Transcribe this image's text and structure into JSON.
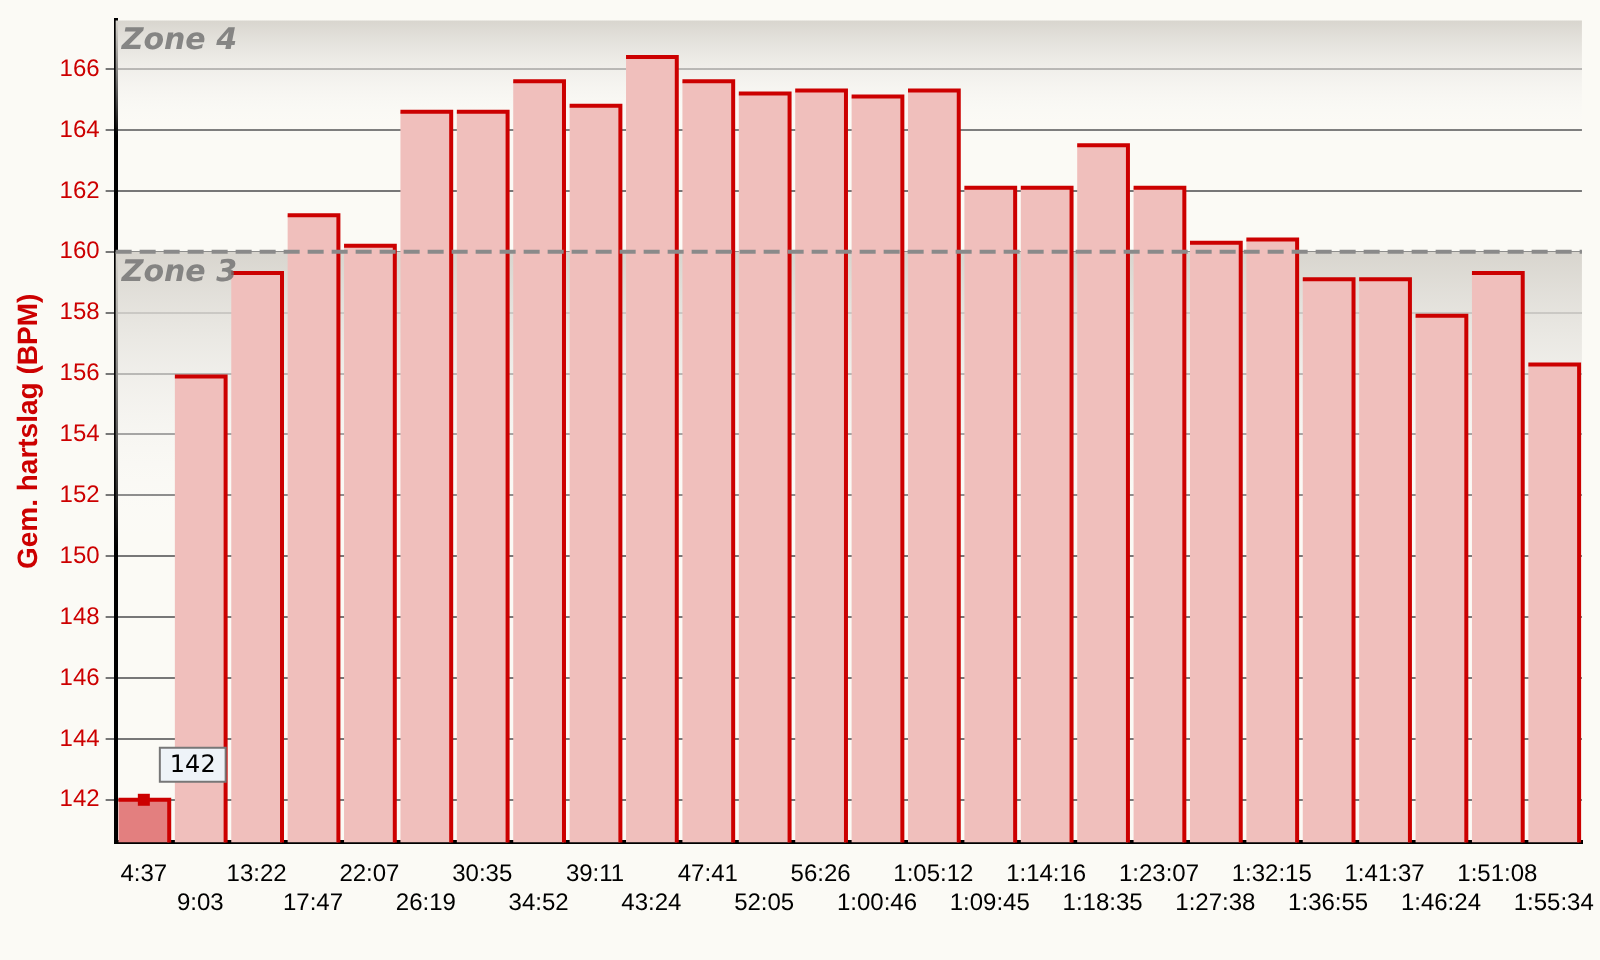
{
  "chart_data": {
    "type": "bar",
    "ylabel": "Gem. hartslag (BPM)",
    "categories": [
      "4:37",
      "9:03",
      "13:22",
      "17:47",
      "22:07",
      "26:19",
      "30:35",
      "34:52",
      "39:11",
      "43:24",
      "47:41",
      "52:05",
      "56:26",
      "1:00:46",
      "1:05:12",
      "1:09:45",
      "1:14:16",
      "1:18:35",
      "1:23:07",
      "1:27:38",
      "1:32:15",
      "1:36:55",
      "1:41:37",
      "1:46:24",
      "1:51:08",
      "1:55:34"
    ],
    "values": [
      142,
      155.9,
      159.3,
      161.2,
      160.2,
      164.6,
      164.6,
      165.6,
      164.8,
      166.4,
      165.6,
      165.2,
      165.3,
      165.1,
      165.3,
      162.1,
      162.1,
      163.5,
      162.1,
      160.3,
      160.4,
      159.1,
      159.1,
      157.9,
      159.3,
      156.3
    ],
    "colors": [
      "#e37f7f",
      "#f0bfbc",
      "#f0bfbc",
      "#f0bfbc",
      "#f0bfbc",
      "#f0bfbc",
      "#f0bfbc",
      "#f0bfbc",
      "#f0bfbc",
      "#f0bfbc",
      "#f0bfbc",
      "#f0bfbc",
      "#f0bfbc",
      "#f0bfbc",
      "#f0bfbc",
      "#f0bfbc",
      "#f0bfbc",
      "#f0bfbc",
      "#f0bfbc",
      "#f0bfbc",
      "#f0bfbc",
      "#f0bfbc",
      "#f0bfbc",
      "#f0bfbc",
      "#f0bfbc",
      "#f0bfbc"
    ],
    "ylim": [
      140.6,
      167.6
    ],
    "yticks": [
      142,
      144,
      146,
      148,
      150,
      152,
      154,
      156,
      158,
      160,
      162,
      164,
      166
    ],
    "grid": "y",
    "legend": false,
    "bands": [
      {
        "axis": "y",
        "from": 160,
        "to": 167.6,
        "label": "Zone 4",
        "color": "#d8d5ce"
      },
      {
        "axis": "y",
        "from": 140.6,
        "to": 160,
        "label": "Zone 3",
        "color": "#d8d5ce"
      }
    ],
    "ref_lines": [
      {
        "axis": "y",
        "value": 160,
        "color": "#8a8a8a",
        "line_style": "dashed"
      }
    ],
    "annotations": [
      {
        "text": "142",
        "x": "4:37",
        "y": 142
      }
    ]
  }
}
